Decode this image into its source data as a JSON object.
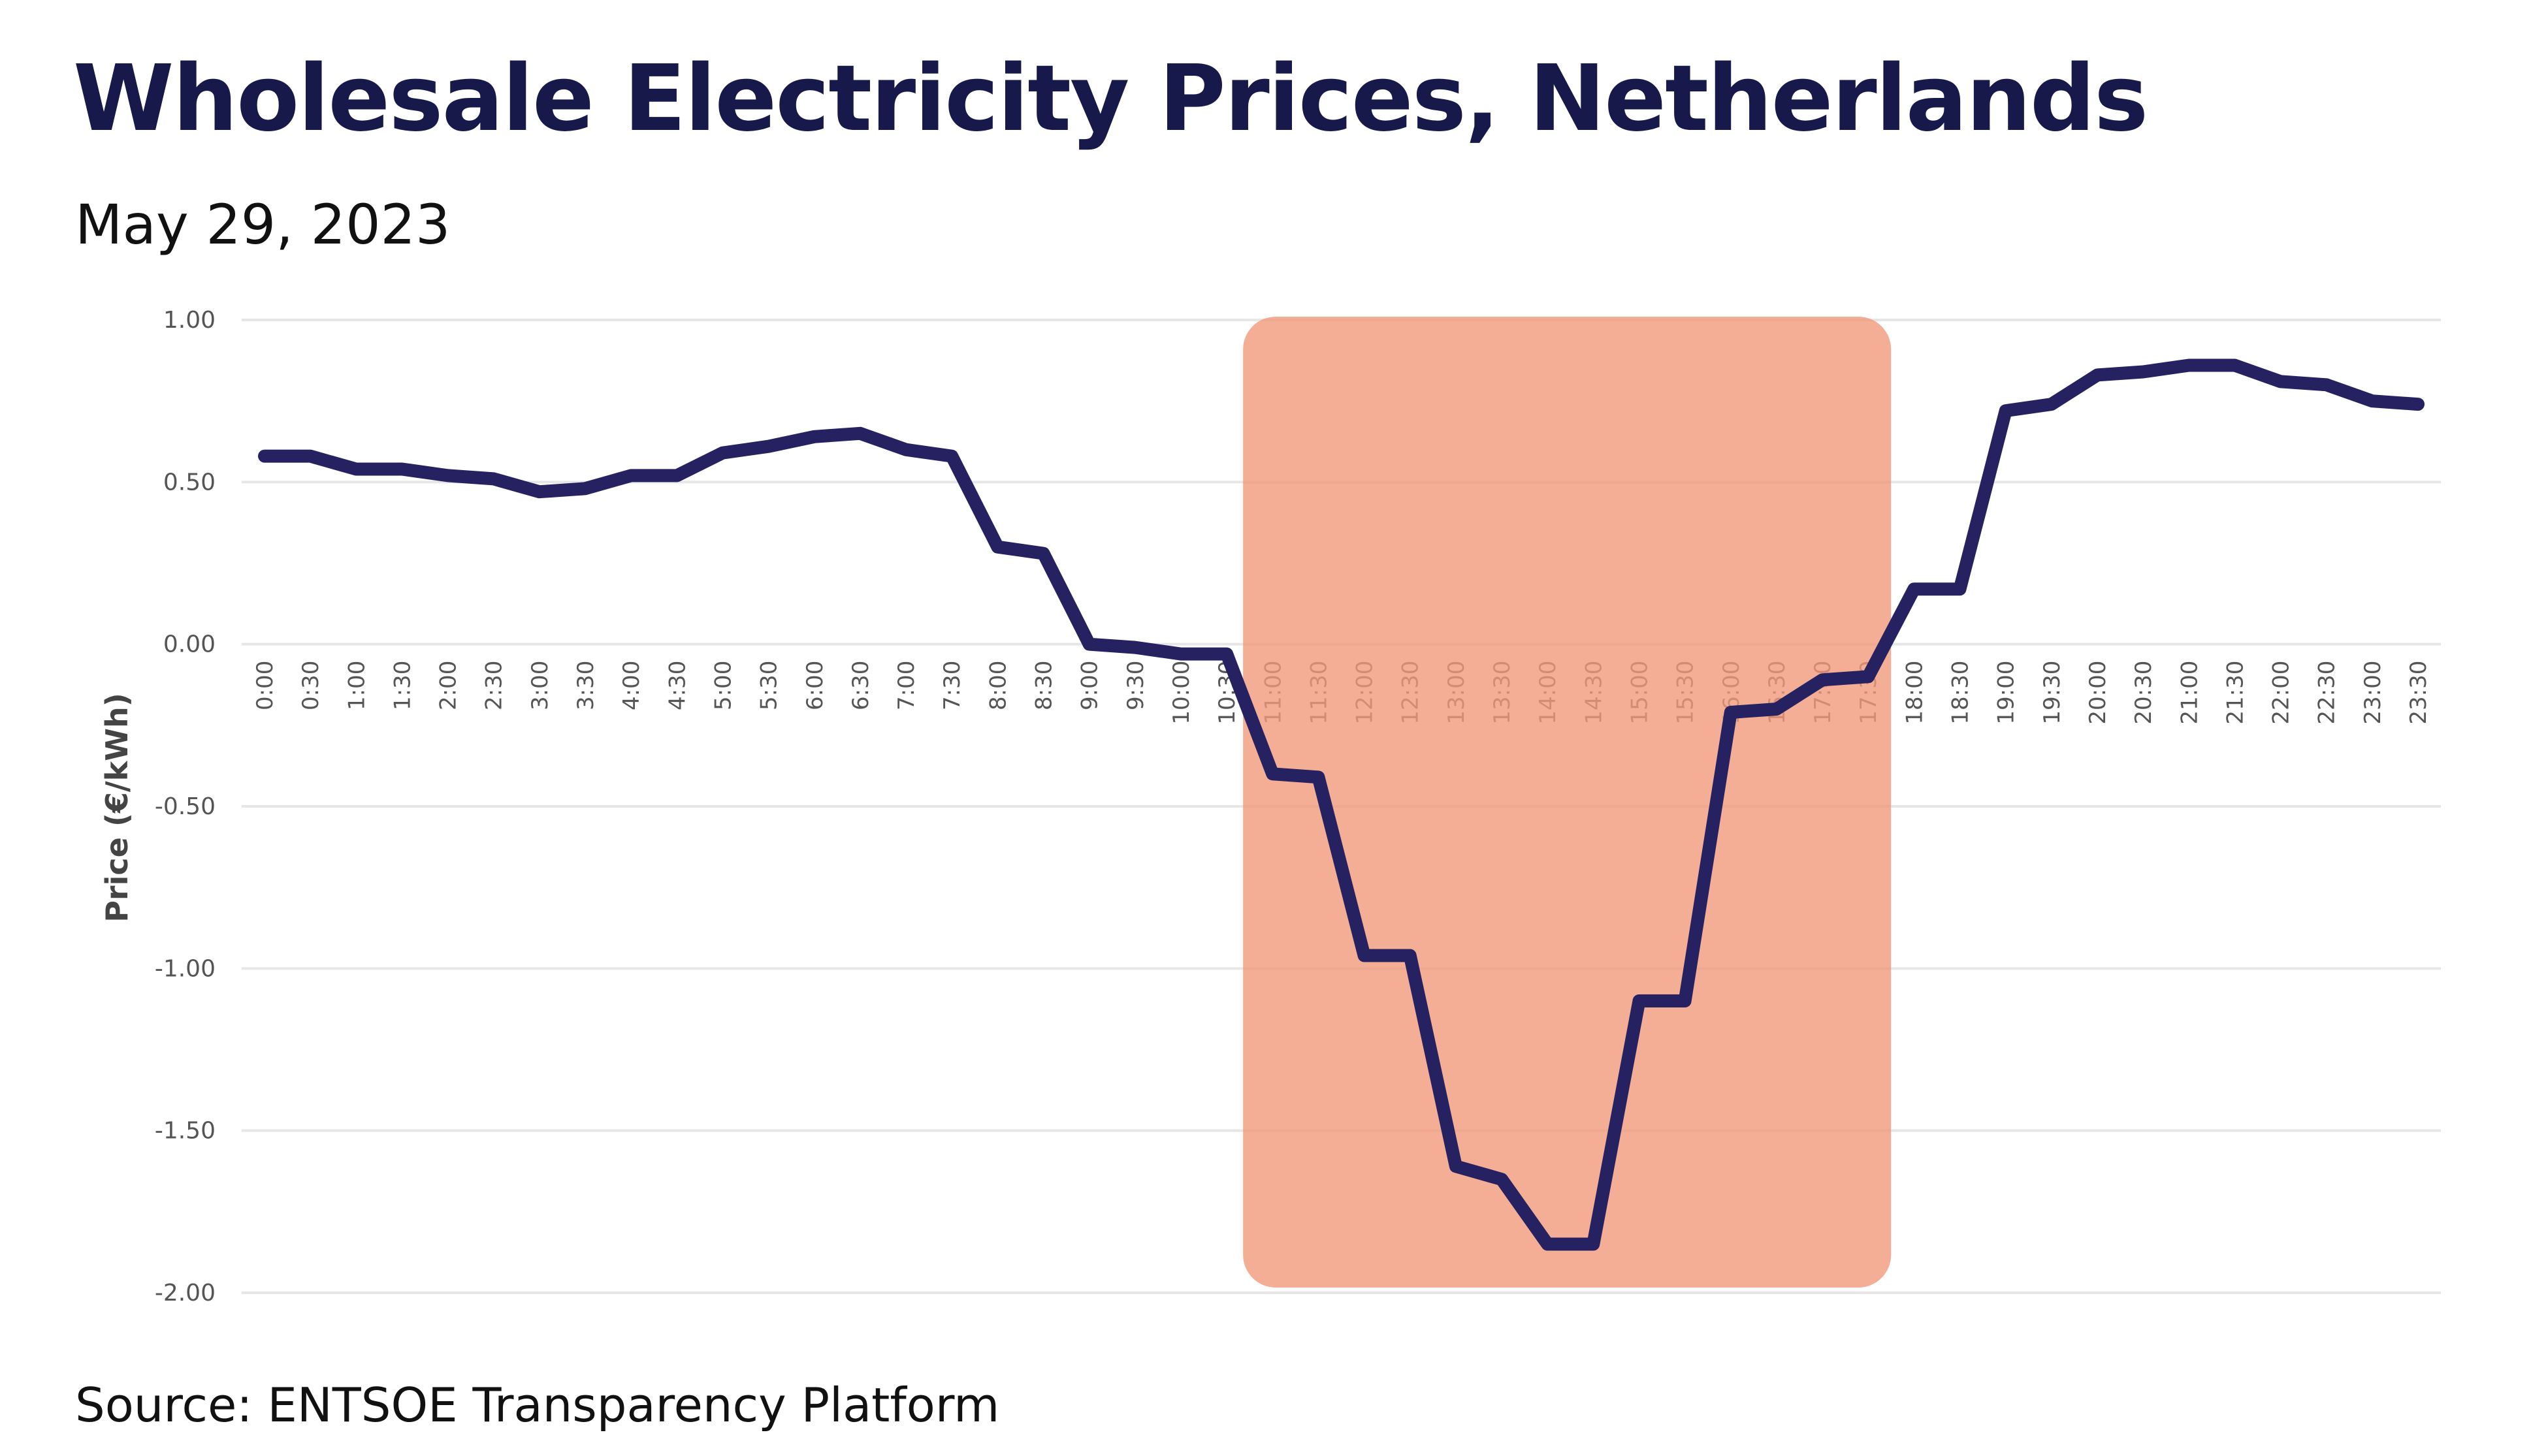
{
  "chart_data": {
    "type": "line",
    "title": "Wholesale Electricity Prices, Netherlands",
    "subtitle": "May 29, 2023",
    "source": "Source: ENTSOE Transparency Platform",
    "xlabel": "",
    "ylabel": "Price (€/kWh)",
    "ylim": [
      -2.0,
      1.0
    ],
    "yticks": [
      "1.00",
      "0.50",
      "0.00",
      "-0.50",
      "-1.00",
      "-1.50",
      "-2.00"
    ],
    "ytick_values": [
      1.0,
      0.5,
      0.0,
      -0.5,
      -1.0,
      -1.5,
      -2.0
    ],
    "grid": "horizontal",
    "line_color": "#262262",
    "highlight": {
      "from": "10:30",
      "to": "17:30",
      "color": "#f39a7c"
    },
    "x": [
      "0:00",
      "0:30",
      "1:00",
      "1:30",
      "2:00",
      "2:30",
      "3:00",
      "3:30",
      "4:00",
      "4:30",
      "5:00",
      "5:30",
      "6:00",
      "6:30",
      "7:00",
      "7:30",
      "8:00",
      "8:30",
      "9:00",
      "9:30",
      "10:00",
      "10:30",
      "11:00",
      "11:30",
      "12:00",
      "12:30",
      "13:00",
      "13:30",
      "14:00",
      "14:30",
      "15:00",
      "15:30",
      "16:00",
      "16:30",
      "17:00",
      "17:30",
      "18:00",
      "18:30",
      "19:00",
      "19:30",
      "20:00",
      "20:30",
      "21:00",
      "21:30",
      "22:00",
      "22:30",
      "23:00",
      "23:30"
    ],
    "values": [
      0.58,
      0.58,
      0.54,
      0.54,
      0.52,
      0.51,
      0.47,
      0.48,
      0.52,
      0.52,
      0.59,
      0.61,
      0.64,
      0.65,
      0.6,
      0.58,
      0.3,
      0.28,
      0.0,
      -0.01,
      -0.03,
      -0.03,
      -0.4,
      -0.41,
      -0.96,
      -0.96,
      -1.61,
      -1.65,
      -1.85,
      -1.85,
      -1.1,
      -1.1,
      -0.21,
      -0.2,
      -0.11,
      -0.1,
      0.17,
      0.17,
      0.72,
      0.74,
      0.83,
      0.84,
      0.86,
      0.86,
      0.81,
      0.8,
      0.75,
      0.74
    ]
  }
}
